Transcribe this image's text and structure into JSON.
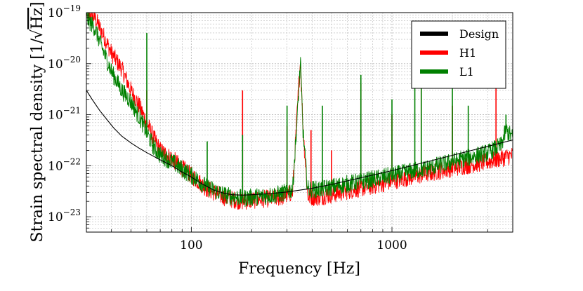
{
  "chart_data": {
    "type": "line",
    "title": "",
    "xlabel": "Frequency [Hz]",
    "ylabel": "Strain spectral density [1/√Hz]",
    "ylabel_main": "Strain spectral density [1/",
    "ylabel_unit": "Hz",
    "ylabel_close": "]",
    "x_scale": "log",
    "y_scale": "log",
    "xlim": [
      30,
      4000
    ],
    "ylim": [
      5e-24,
      1e-19
    ],
    "grid": true,
    "legend_position": "top-right",
    "x_ticks": [
      {
        "value": 100,
        "label": "100"
      },
      {
        "value": 1000,
        "label": "1000"
      }
    ],
    "y_ticks": [
      {
        "value": 1e-23,
        "base": "10",
        "exp": "−23"
      },
      {
        "value": 1e-22,
        "base": "10",
        "exp": "−22"
      },
      {
        "value": 1e-21,
        "base": "10",
        "exp": "−21"
      },
      {
        "value": 1e-20,
        "base": "10",
        "exp": "−20"
      },
      {
        "value": 1e-19,
        "base": "10",
        "exp": "−19"
      }
    ],
    "series": [
      {
        "name": "Design",
        "color": "#000000",
        "style": "smooth",
        "points": [
          [
            30,
            3e-21
          ],
          [
            32,
            2e-21
          ],
          [
            35,
            1.2e-21
          ],
          [
            38,
            8e-22
          ],
          [
            41,
            5.5e-22
          ],
          [
            45,
            3.8e-22
          ],
          [
            50,
            2.8e-22
          ],
          [
            55,
            2.2e-22
          ],
          [
            60,
            1.8e-22
          ],
          [
            70,
            1.3e-22
          ],
          [
            80,
            1e-22
          ],
          [
            90,
            7.5e-23
          ],
          [
            100,
            6e-23
          ],
          [
            110,
            4.7e-23
          ],
          [
            120,
            3.9e-23
          ],
          [
            130,
            3.3e-23
          ],
          [
            145,
            2.9e-23
          ],
          [
            160,
            2.7e-23
          ],
          [
            180,
            2.65e-23
          ],
          [
            200,
            2.7e-23
          ],
          [
            250,
            2.85e-23
          ],
          [
            300,
            3.05e-23
          ],
          [
            400,
            3.6e-23
          ],
          [
            500,
            4.3e-23
          ],
          [
            700,
            5.8e-23
          ],
          [
            1000,
            8e-23
          ],
          [
            1500,
            1.2e-22
          ],
          [
            2000,
            1.6e-22
          ],
          [
            3000,
            2.4e-22
          ],
          [
            4000,
            3.2e-22
          ]
        ]
      },
      {
        "name": "H1",
        "color": "#ff0000",
        "style": "noisy",
        "points": [
          [
            30,
            1e-19
          ],
          [
            33,
            8e-20
          ],
          [
            36,
            4e-20
          ],
          [
            40,
            1.6e-20
          ],
          [
            45,
            8e-21
          ],
          [
            50,
            3e-21
          ],
          [
            55,
            1.5e-21
          ],
          [
            60,
            7e-22
          ],
          [
            65,
            3.5e-22
          ],
          [
            70,
            2e-22
          ],
          [
            80,
            1.4e-22
          ],
          [
            90,
            9e-23
          ],
          [
            100,
            6.5e-23
          ],
          [
            120,
            3.5e-23
          ],
          [
            150,
            2.3e-23
          ],
          [
            180,
            2e-23
          ],
          [
            220,
            2.2e-23
          ],
          [
            280,
            2.4e-23
          ],
          [
            320,
            3e-23
          ],
          [
            340,
            2e-21
          ],
          [
            350,
            1.2e-20
          ],
          [
            360,
            6e-22
          ],
          [
            380,
            2.5e-23
          ],
          [
            420,
            2.4e-23
          ],
          [
            500,
            2.7e-23
          ],
          [
            600,
            3.2e-23
          ],
          [
            800,
            4e-23
          ],
          [
            1000,
            5e-23
          ],
          [
            1500,
            7e-23
          ],
          [
            2000,
            9e-23
          ],
          [
            3000,
            1.2e-22
          ],
          [
            4000,
            1.6e-22
          ]
        ],
        "spikes": [
          [
            60,
            3e-21
          ],
          [
            180,
            3e-21
          ],
          [
            300,
            6e-22
          ],
          [
            350,
            1.2e-20
          ],
          [
            395,
            5e-22
          ],
          [
            500,
            2e-22
          ],
          [
            700,
            4e-21
          ],
          [
            1000,
            1e-21
          ],
          [
            1400,
            5e-21
          ],
          [
            2000,
            1.5e-21
          ],
          [
            3300,
            4e-21
          ]
        ]
      },
      {
        "name": "L1",
        "color": "#008000",
        "style": "noisy",
        "points": [
          [
            30,
            8e-20
          ],
          [
            33,
            5e-20
          ],
          [
            36,
            2e-20
          ],
          [
            40,
            7e-21
          ],
          [
            45,
            3e-21
          ],
          [
            50,
            1.8e-21
          ],
          [
            55,
            9e-22
          ],
          [
            60,
            4.5e-22
          ],
          [
            65,
            2.3e-22
          ],
          [
            70,
            1.6e-22
          ],
          [
            80,
            1.2e-22
          ],
          [
            90,
            8.5e-23
          ],
          [
            100,
            6.5e-23
          ],
          [
            120,
            3.8e-23
          ],
          [
            150,
            2.6e-23
          ],
          [
            180,
            2.3e-23
          ],
          [
            220,
            2.5e-23
          ],
          [
            280,
            2.8e-23
          ],
          [
            320,
            3.5e-23
          ],
          [
            340,
            1.5e-21
          ],
          [
            350,
            1.1e-20
          ],
          [
            360,
            5e-22
          ],
          [
            380,
            3.5e-23
          ],
          [
            420,
            3.4e-23
          ],
          [
            500,
            3.8e-23
          ],
          [
            600,
            4.4e-23
          ],
          [
            800,
            5.4e-23
          ],
          [
            1000,
            6.5e-23
          ],
          [
            1500,
            9e-23
          ],
          [
            2000,
            1.2e-22
          ],
          [
            3000,
            1.8e-22
          ],
          [
            3500,
            2.5e-22
          ],
          [
            3700,
            5e-22
          ],
          [
            4000,
            3.5e-22
          ]
        ],
        "spikes": [
          [
            60,
            4e-20
          ],
          [
            120,
            3e-22
          ],
          [
            180,
            4e-22
          ],
          [
            300,
            1.5e-21
          ],
          [
            350,
            1.1e-20
          ],
          [
            450,
            1.5e-21
          ],
          [
            700,
            6e-21
          ],
          [
            1000,
            2e-21
          ],
          [
            1300,
            1.3e-20
          ],
          [
            1400,
            1e-20
          ],
          [
            2000,
            6e-21
          ],
          [
            2400,
            1.5e-21
          ],
          [
            3700,
            1e-21
          ]
        ]
      }
    ]
  }
}
